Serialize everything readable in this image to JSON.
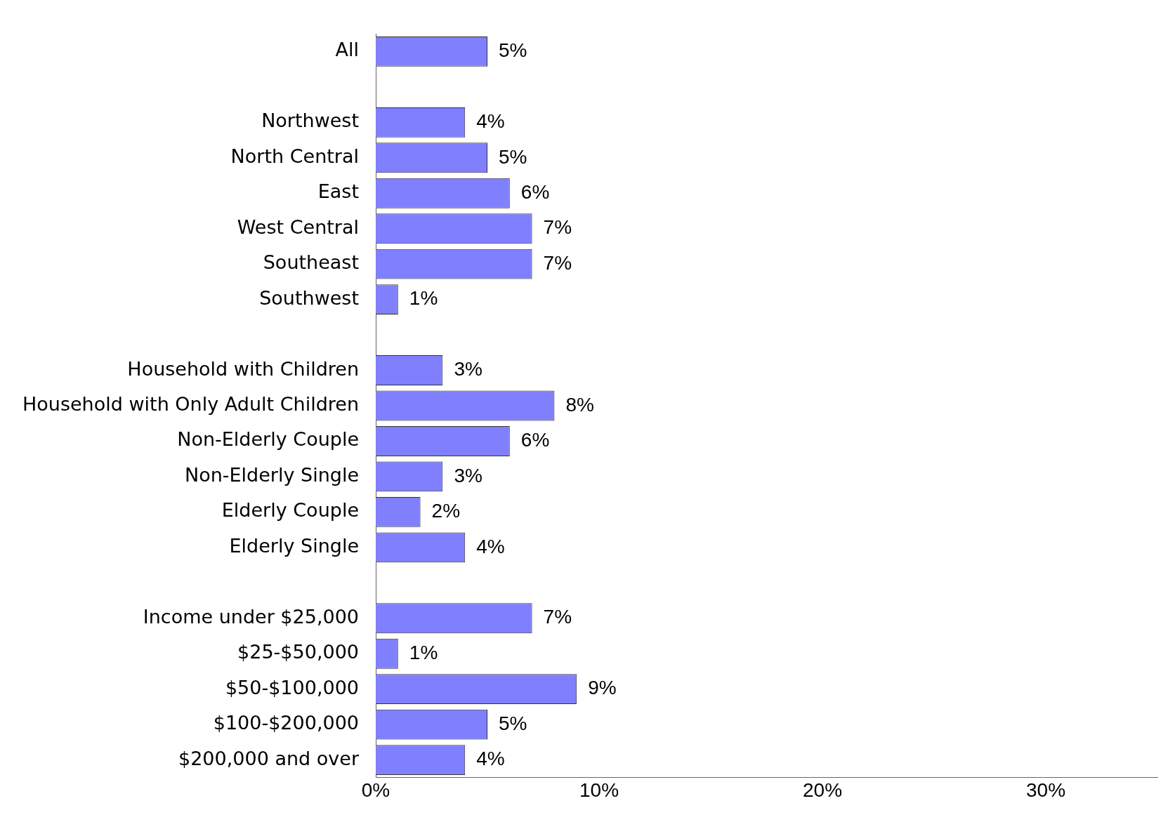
{
  "chart_data": {
    "type": "bar",
    "orientation": "horizontal",
    "categories": [
      "All",
      null,
      "Northwest",
      "North Central",
      "East",
      "West Central",
      "Southeast",
      "Southwest",
      null,
      "Household with Children",
      "Household with Only Adult Children",
      "Non-Elderly Couple",
      "Non-Elderly Single",
      "Elderly Couple",
      "Elderly Single",
      null,
      "Income under $25,000",
      "$25-$50,000",
      "$50-$100,000",
      "$100-$200,000",
      "$200,000 and over"
    ],
    "values": [
      5,
      null,
      4,
      5,
      6,
      7,
      7,
      1,
      null,
      3,
      8,
      6,
      3,
      2,
      4,
      null,
      7,
      1,
      9,
      5,
      4
    ],
    "value_labels": [
      "5%",
      null,
      "4%",
      "5%",
      "6%",
      "7%",
      "7%",
      "1%",
      null,
      "3%",
      "8%",
      "6%",
      "3%",
      "2%",
      "4%",
      null,
      "7%",
      "1%",
      "9%",
      "5%",
      "4%"
    ],
    "color": "#8080ff",
    "xlim": [
      0,
      35
    ],
    "xticks": [
      {
        "value": 0,
        "label": "0%"
      },
      {
        "value": 10,
        "label": "10%"
      },
      {
        "value": 20,
        "label": "20%"
      },
      {
        "value": 30,
        "label": "30%"
      }
    ],
    "grid": false,
    "legend": false
  }
}
